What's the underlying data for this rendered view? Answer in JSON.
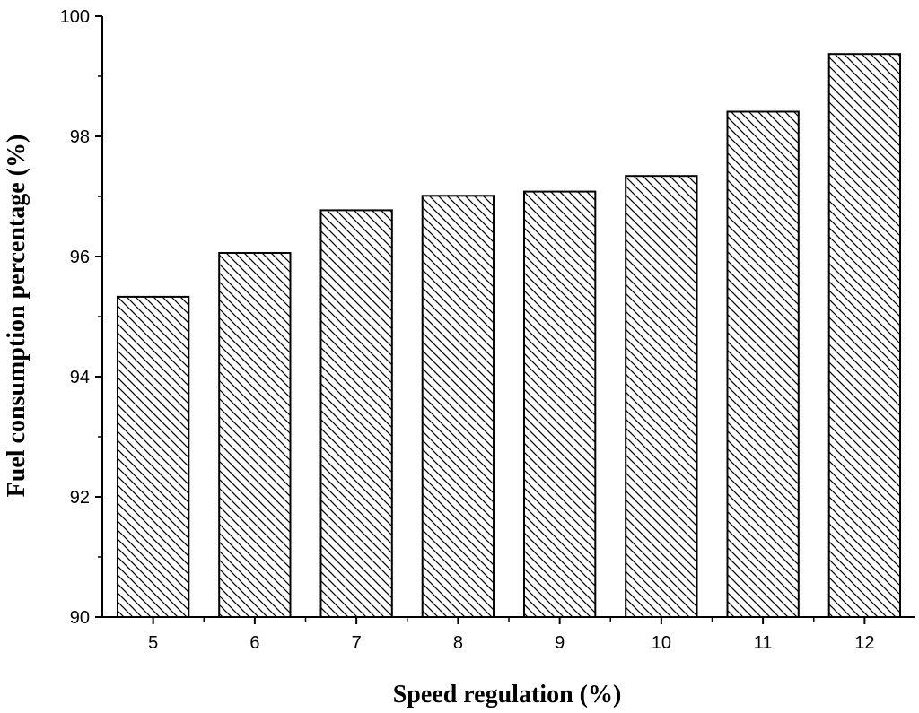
{
  "chart_data": {
    "type": "bar",
    "categories": [
      "5",
      "6",
      "7",
      "8",
      "9",
      "10",
      "11",
      "12"
    ],
    "values": [
      95.33,
      96.06,
      96.77,
      97.01,
      97.08,
      97.34,
      98.41,
      99.37
    ],
    "xlabel": "Speed regulation (%)",
    "ylabel": "Fuel consumption percentage (%)",
    "ylim": [
      90,
      100
    ],
    "yticks": [
      90,
      92,
      94,
      96,
      98,
      100
    ],
    "grid": false,
    "bar_fill": "diagonal-hatch",
    "colors": {
      "bar_stroke": "#000000",
      "hatch": "#000000",
      "background": "#ffffff"
    }
  }
}
